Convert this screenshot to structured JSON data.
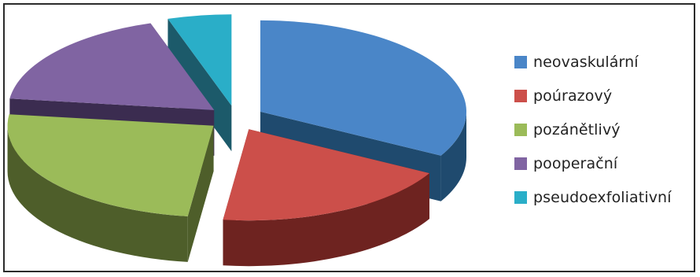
{
  "chart_data": {
    "type": "pie",
    "style": "3d-exploded",
    "categories": [
      "neovaskulární",
      "poúrazový",
      "pozánětlivý",
      "pooperační",
      "pseudoexfoliativní"
    ],
    "values": [
      33,
      19,
      25,
      18,
      5
    ],
    "colors": [
      "#4a86c8",
      "#cc4f4a",
      "#9bbb59",
      "#8064a2",
      "#2aaec8"
    ],
    "side_colors": [
      "#1f4a6e",
      "#6e2320",
      "#4e5e2a",
      "#3b2c50",
      "#1c5a6a"
    ],
    "legend_position": "right"
  }
}
